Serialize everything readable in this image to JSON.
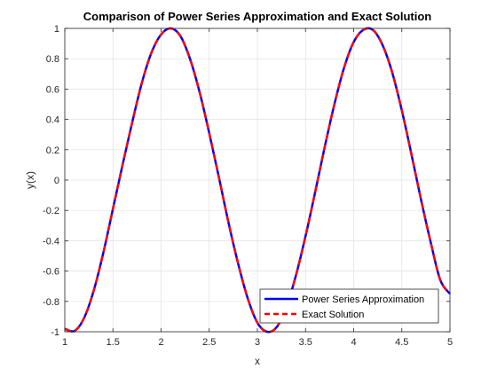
{
  "colors": {
    "series_solid": "#0000ff",
    "series_dashed": "#ff0000",
    "grid": "#e0e0e0",
    "axes": "#262626"
  },
  "chart_data": {
    "type": "line",
    "title": "Comparison of Power Series Approximation and Exact Solution",
    "xlabel": "x",
    "ylabel": "y(x)",
    "xlim": [
      1,
      5
    ],
    "ylim": [
      -1,
      1
    ],
    "grid": true,
    "legend_position": "bottom-right",
    "x_ticks": [
      "1",
      "1.5",
      "2",
      "2.5",
      "3",
      "3.5",
      "4",
      "4.5",
      "5"
    ],
    "y_ticks": [
      "-1",
      "-0.8",
      "-0.6",
      "-0.4",
      "-0.2",
      "0",
      "0.2",
      "0.4",
      "0.6",
      "0.8",
      "1"
    ],
    "x": [
      1.0,
      1.1,
      1.2,
      1.3,
      1.4,
      1.5,
      1.6,
      1.7,
      1.8,
      1.9,
      2.0,
      2.1,
      2.2,
      2.3,
      2.4,
      2.5,
      2.6,
      2.7,
      2.8,
      2.9,
      3.0,
      3.1,
      3.2,
      3.3,
      3.4,
      3.5,
      3.6,
      3.7,
      3.8,
      3.9,
      4.0,
      4.1,
      4.2,
      4.3,
      4.4,
      4.5,
      4.6,
      4.7,
      4.8,
      4.9,
      5.0
    ],
    "series": [
      {
        "name": "Power Series Approximation",
        "style": "solid",
        "values": [
          -0.98,
          -0.995,
          -0.91,
          -0.73,
          -0.48,
          -0.19,
          0.1,
          0.38,
          0.64,
          0.84,
          0.96,
          1.0,
          0.95,
          0.8,
          0.58,
          0.31,
          0.02,
          -0.28,
          -0.55,
          -0.78,
          -0.94,
          -1.0,
          -0.97,
          -0.84,
          -0.63,
          -0.37,
          -0.08,
          0.22,
          0.5,
          0.74,
          0.91,
          0.99,
          0.99,
          0.89,
          0.71,
          0.46,
          0.17,
          -0.13,
          -0.41,
          -0.66,
          -0.75
        ]
      },
      {
        "name": "Exact Solution",
        "style": "dashed",
        "values": [
          -0.98,
          -0.995,
          -0.91,
          -0.73,
          -0.48,
          -0.19,
          0.1,
          0.38,
          0.64,
          0.84,
          0.96,
          1.0,
          0.95,
          0.8,
          0.58,
          0.31,
          0.02,
          -0.28,
          -0.55,
          -0.78,
          -0.94,
          -1.0,
          -0.97,
          -0.84,
          -0.63,
          -0.37,
          -0.08,
          0.22,
          0.5,
          0.74,
          0.91,
          0.99,
          0.99,
          0.89,
          0.71,
          0.46,
          0.17,
          -0.13,
          -0.41,
          -0.66,
          -0.75
        ]
      }
    ]
  }
}
